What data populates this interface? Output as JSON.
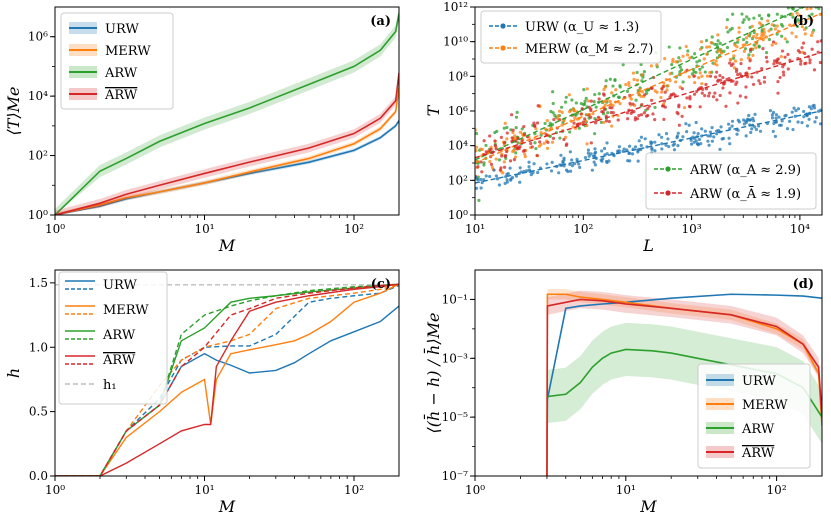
{
  "figure": {
    "colors": {
      "URW": "#1f77b4",
      "MERW": "#ff7f0e",
      "ARW": "#2ca02c",
      "ARWbar": "#d62728",
      "h1": "#b0b0b0"
    }
  },
  "chart_data": [
    {
      "id": "a",
      "type": "line",
      "panel_label": "(a)",
      "xlabel": "M",
      "ylabel": "⟨T⟩Me",
      "xscale": "log",
      "yscale": "log",
      "xlim": [
        1,
        200
      ],
      "ylim": [
        1,
        10000000
      ],
      "xticks": [
        {
          "v": 1,
          "label": "10⁰"
        },
        {
          "v": 10,
          "label": "10¹"
        },
        {
          "v": 100,
          "label": "10²"
        }
      ],
      "yticks": [
        {
          "v": 1,
          "label": "10⁰"
        },
        {
          "v": 100,
          "label": "10²"
        },
        {
          "v": 10000,
          "label": "10⁴"
        },
        {
          "v": 1000000,
          "label": "10⁶"
        }
      ],
      "legend_position": "top-left",
      "series": [
        {
          "name": "URW",
          "color": "URW",
          "band": 1.15,
          "x": [
            1,
            2,
            3,
            5,
            10,
            20,
            50,
            100,
            150,
            190,
            200
          ],
          "y": [
            1,
            2,
            3.5,
            6,
            12,
            25,
            60,
            150,
            400,
            1000,
            1500
          ]
        },
        {
          "name": "MERW",
          "color": "MERW",
          "band": 1.2,
          "x": [
            1,
            2,
            3,
            5,
            10,
            20,
            50,
            100,
            150,
            190,
            200
          ],
          "y": [
            1,
            2.2,
            3.8,
            6,
            12,
            28,
            80,
            250,
            800,
            3000,
            20000
          ]
        },
        {
          "name": "ARW",
          "color": "ARW",
          "band": 1.6,
          "x": [
            1,
            2,
            3,
            5,
            10,
            20,
            50,
            100,
            150,
            190,
            200
          ],
          "y": [
            1,
            30,
            80,
            300,
            1200,
            4000,
            25000,
            100000,
            350000,
            1500000,
            6000000
          ]
        },
        {
          "name": "ARW",
          "overline": true,
          "color": "ARWbar",
          "band": 1.4,
          "x": [
            1,
            2,
            3,
            5,
            10,
            20,
            50,
            100,
            150,
            190,
            200
          ],
          "y": [
            1,
            2.5,
            5,
            10,
            25,
            60,
            180,
            550,
            1800,
            7000,
            60000
          ]
        }
      ]
    },
    {
      "id": "b",
      "type": "scatter",
      "panel_label": "(b)",
      "xlabel": "L",
      "ylabel": "T",
      "xscale": "log",
      "yscale": "log",
      "xlim": [
        10,
        16000
      ],
      "ylim": [
        1,
        1000000000000
      ],
      "xticks": [
        {
          "v": 10,
          "label": "10¹"
        },
        {
          "v": 100,
          "label": "10²"
        },
        {
          "v": 1000,
          "label": "10³"
        },
        {
          "v": 10000,
          "label": "10⁴"
        }
      ],
      "yticks": [
        {
          "v": 1,
          "label": "10⁰"
        },
        {
          "v": 100,
          "label": "10²"
        },
        {
          "v": 10000,
          "label": "10⁴"
        },
        {
          "v": 1000000,
          "label": "10⁶"
        },
        {
          "v": 100000000,
          "label": "10⁸"
        },
        {
          "v": 10000000000,
          "label": "10¹⁰"
        },
        {
          "v": 1000000000000,
          "label": "10¹²"
        }
      ],
      "legend_top": [
        {
          "series": "URW",
          "label": "URW (α_U ≈ 1.3)"
        },
        {
          "series": "MERW",
          "label": "MERW (α_M ≈ 2.7)"
        }
      ],
      "legend_bottom": [
        {
          "series": "ARW",
          "label": "ARW (α_A ≈ 2.9)"
        },
        {
          "series": "ARWbar",
          "label": "ARW (α_Ā ≈ 1.9)"
        }
      ],
      "series": [
        {
          "name": "URW",
          "color": "URW",
          "exponent": 1.3,
          "T_at_10": 70,
          "scatter_decades": 0.35,
          "n": 260
        },
        {
          "name": "MERW",
          "color": "MERW",
          "exponent": 2.7,
          "T_at_10": 1000,
          "scatter_decades": 0.7,
          "n": 260
        },
        {
          "name": "ARW",
          "color": "ARW",
          "exponent": 2.9,
          "T_at_10": 1500,
          "scatter_decades": 0.7,
          "n": 260
        },
        {
          "name": "ARW",
          "overline": true,
          "color": "ARWbar",
          "exponent": 1.9,
          "T_at_10": 2000,
          "scatter_decades": 0.6,
          "n": 260
        }
      ]
    },
    {
      "id": "c",
      "type": "line",
      "panel_label": "(c)",
      "xlabel": "M",
      "ylabel": "h",
      "xscale": "log",
      "yscale": "linear",
      "xlim": [
        1,
        200
      ],
      "ylim": [
        0,
        1.6
      ],
      "xticks": [
        {
          "v": 1,
          "label": "10⁰"
        },
        {
          "v": 10,
          "label": "10¹"
        },
        {
          "v": 100,
          "label": "10²"
        }
      ],
      "yticks": [
        {
          "v": 0,
          "label": "0.0"
        },
        {
          "v": 0.5,
          "label": "0.5"
        },
        {
          "v": 1.0,
          "label": "1.0"
        },
        {
          "v": 1.5,
          "label": "1.5"
        }
      ],
      "h1_value": 1.485,
      "legend": [
        {
          "series": "URW",
          "label": "URW"
        },
        {
          "series": "MERW",
          "label": "MERW"
        },
        {
          "series": "ARW",
          "label": "ARW"
        },
        {
          "series": "ARWbar",
          "label": "ARW",
          "overline": true
        },
        {
          "series": "h1",
          "label": "h₁"
        }
      ],
      "series": [
        {
          "name": "URW",
          "color": "URW",
          "dash": false,
          "x": [
            1,
            2,
            3,
            5,
            7,
            10,
            12,
            15,
            20,
            30,
            40,
            50,
            70,
            100,
            150,
            200
          ],
          "y": [
            0,
            0,
            0.35,
            0.55,
            0.85,
            0.95,
            0.9,
            0.86,
            0.8,
            0.82,
            0.88,
            0.95,
            1.05,
            1.12,
            1.2,
            1.32
          ]
        },
        {
          "name": "URW",
          "color": "URW",
          "dash": true,
          "x": [
            1,
            2,
            3,
            5,
            7,
            10,
            15,
            20,
            30,
            50,
            70,
            100,
            150,
            200
          ],
          "y": [
            0,
            0,
            0.35,
            0.6,
            0.9,
            1.0,
            1.01,
            1.01,
            1.1,
            1.35,
            1.38,
            1.4,
            1.42,
            1.48
          ]
        },
        {
          "name": "MERW",
          "color": "MERW",
          "dash": false,
          "x": [
            1,
            2,
            3,
            5,
            7,
            10,
            11,
            12,
            15,
            20,
            30,
            40,
            50,
            70,
            100,
            150,
            200
          ],
          "y": [
            0,
            0,
            0.3,
            0.5,
            0.65,
            0.75,
            0.4,
            0.75,
            0.95,
            0.98,
            1.02,
            1.05,
            1.1,
            1.2,
            1.35,
            1.42,
            1.49
          ]
        },
        {
          "name": "MERW",
          "color": "MERW",
          "dash": true,
          "x": [
            1,
            2,
            3,
            5,
            7,
            10,
            15,
            20,
            30,
            50,
            100,
            150,
            200
          ],
          "y": [
            0,
            0,
            0.35,
            0.7,
            0.9,
            1.0,
            1.05,
            1.1,
            1.3,
            1.38,
            1.42,
            1.45,
            1.49
          ]
        },
        {
          "name": "ARW",
          "color": "ARW",
          "dash": false,
          "x": [
            1,
            2,
            3,
            5,
            7,
            10,
            15,
            20,
            30,
            50,
            100,
            150,
            200
          ],
          "y": [
            0,
            0,
            0.35,
            0.55,
            1.05,
            1.15,
            1.35,
            1.38,
            1.4,
            1.43,
            1.46,
            1.48,
            1.49
          ]
        },
        {
          "name": "ARW",
          "color": "ARW",
          "dash": true,
          "x": [
            1,
            2,
            3,
            5,
            7,
            10,
            15,
            20,
            30,
            50,
            100,
            150,
            200
          ],
          "y": [
            0,
            0,
            0.35,
            0.55,
            1.1,
            1.25,
            1.32,
            1.36,
            1.4,
            1.44,
            1.47,
            1.48,
            1.49
          ]
        },
        {
          "name": "ARW",
          "overline": true,
          "color": "ARWbar",
          "dash": false,
          "x": [
            1,
            2,
            3,
            5,
            7,
            10,
            11,
            12,
            15,
            20,
            30,
            50,
            100,
            150,
            200
          ],
          "y": [
            0,
            0,
            0.1,
            0.25,
            0.35,
            0.4,
            0.4,
            0.85,
            1.05,
            1.28,
            1.35,
            1.4,
            1.45,
            1.47,
            1.49
          ]
        },
        {
          "name": "ARW",
          "overline": true,
          "color": "ARWbar",
          "dash": true,
          "x": [
            1,
            2,
            3,
            5,
            7,
            10,
            15,
            20,
            30,
            50,
            100,
            150,
            200
          ],
          "y": [
            0,
            0,
            0.35,
            0.55,
            0.85,
            1.0,
            1.25,
            1.3,
            1.38,
            1.42,
            1.46,
            1.48,
            1.49
          ]
        }
      ]
    },
    {
      "id": "d",
      "type": "line",
      "panel_label": "(d)",
      "xlabel": "M",
      "ylabel": "⟨(h̄ − h) / h̄⟩Me",
      "xscale": "log",
      "yscale": "log",
      "xlim": [
        1,
        200
      ],
      "ylim": [
        1e-07,
        1
      ],
      "xticks": [
        {
          "v": 1,
          "label": "10⁰"
        },
        {
          "v": 10,
          "label": "10¹"
        },
        {
          "v": 100,
          "label": "10²"
        }
      ],
      "yticks": [
        {
          "v": 1e-07,
          "label": "10⁻⁷"
        },
        {
          "v": 1e-05,
          "label": "10⁻⁵"
        },
        {
          "v": 0.001,
          "label": "10⁻³"
        },
        {
          "v": 0.1,
          "label": "10⁻¹"
        }
      ],
      "legend_position": "lower-right",
      "legend": [
        {
          "series": "URW",
          "label": "URW"
        },
        {
          "series": "MERW",
          "label": "MERW"
        },
        {
          "series": "ARW",
          "label": "ARW"
        },
        {
          "series": "ARWbar",
          "label": "ARW",
          "overline": true
        }
      ],
      "series": [
        {
          "name": "URW",
          "color": "URW",
          "band": 1.0,
          "x": [
            3,
            3.02,
            4,
            5,
            7,
            10,
            20,
            50,
            100,
            150,
            200
          ],
          "y": [
            1e-07,
            4e-05,
            0.05,
            0.06,
            0.07,
            0.08,
            0.11,
            0.15,
            0.14,
            0.13,
            0.11
          ]
        },
        {
          "name": "MERW",
          "color": "MERW",
          "band": 1.5,
          "x": [
            3,
            3.02,
            4,
            5,
            7,
            10,
            20,
            50,
            100,
            150,
            190,
            200
          ],
          "y": [
            1e-07,
            0.15,
            0.15,
            0.12,
            0.1,
            0.08,
            0.05,
            0.03,
            0.01,
            0.003,
            0.0003,
            5e-06
          ]
        },
        {
          "name": "ARW",
          "color": "ARW",
          "band": 8.0,
          "x": [
            3,
            4,
            5,
            6,
            7,
            8,
            10,
            15,
            20,
            30,
            50,
            100,
            150,
            200
          ],
          "y": [
            5e-05,
            6e-05,
            0.00015,
            0.0005,
            0.001,
            0.0015,
            0.002,
            0.0018,
            0.0015,
            0.001,
            0.0006,
            0.0003,
            0.0001,
            1e-05
          ]
        },
        {
          "name": "ARW",
          "overline": true,
          "color": "ARWbar",
          "band": 2.0,
          "x": [
            3,
            3.02,
            4,
            5,
            7,
            10,
            20,
            50,
            100,
            150,
            190,
            200
          ],
          "y": [
            1e-07,
            0.06,
            0.08,
            0.1,
            0.09,
            0.07,
            0.05,
            0.03,
            0.012,
            0.003,
            0.0005,
            1e-05
          ]
        }
      ]
    }
  ]
}
